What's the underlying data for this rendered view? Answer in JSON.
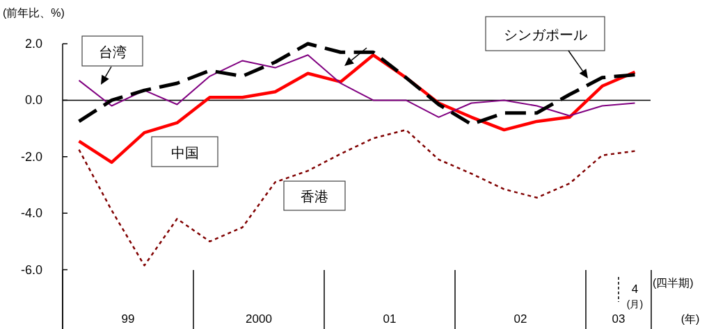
{
  "chart_data": {
    "type": "line",
    "ylabel": "(前年比、%)",
    "xlabel": "(四半期)\n(年)",
    "categories": [
      null,
      null,
      null,
      null,
      null,
      null,
      null,
      null,
      null,
      null,
      null,
      null,
      null,
      null,
      null,
      null,
      null,
      "4\n(月)"
    ],
    "annotations": [
      "99",
      "2000",
      "01",
      "02",
      "03"
    ],
    "ylim": [
      -8.1,
      2
    ],
    "yticks": [
      {
        "value": 2,
        "label": "2.0"
      },
      {
        "value": 0,
        "label": "0.0"
      },
      {
        "value": -2,
        "label": "-2.0"
      },
      {
        "value": -4,
        "label": "-4.0"
      },
      {
        "value": -6,
        "label": "-6.0"
      }
    ],
    "series": [
      {
        "name": "中国",
        "color": "#ff0000",
        "line_style": "solid",
        "values": [
          -1.45,
          -2.2,
          -1.15,
          -0.8,
          0.1,
          0.1,
          0.3,
          0.95,
          0.65,
          1.6,
          0.8,
          -0.1,
          -0.6,
          -1.05,
          -0.75,
          -0.6,
          0.5,
          1.0
        ]
      },
      {
        "name": "台湾",
        "color": "#800080",
        "line_style": "solid",
        "values": [
          0.7,
          -0.2,
          0.35,
          -0.15,
          0.85,
          1.4,
          1.15,
          1.6,
          0.6,
          0.0,
          0.0,
          -0.6,
          -0.1,
          0.0,
          -0.2,
          -0.55,
          -0.2,
          -0.1
        ]
      },
      {
        "name": "香港",
        "color": "#800000",
        "line_style": "dotted",
        "values": [
          -1.75,
          -3.9,
          -5.85,
          -4.2,
          -5.0,
          -4.5,
          -2.9,
          -2.5,
          -1.9,
          -1.35,
          -1.05,
          -2.1,
          -2.6,
          -3.15,
          -3.45,
          -2.95,
          -1.95,
          -1.8
        ]
      },
      {
        "name": "シンガポール",
        "color": "#000000",
        "line_style": "dashed",
        "values": [
          -0.75,
          0.0,
          0.35,
          0.6,
          1.05,
          0.85,
          1.35,
          2.0,
          1.7,
          1.7,
          0.8,
          -0.15,
          -0.85,
          -0.45,
          -0.45,
          0.2,
          0.8,
          0.9
        ]
      }
    ],
    "ref_lines": [
      {
        "axis": "y",
        "value": 0,
        "color": "#000000",
        "line_style": "solid"
      }
    ]
  }
}
